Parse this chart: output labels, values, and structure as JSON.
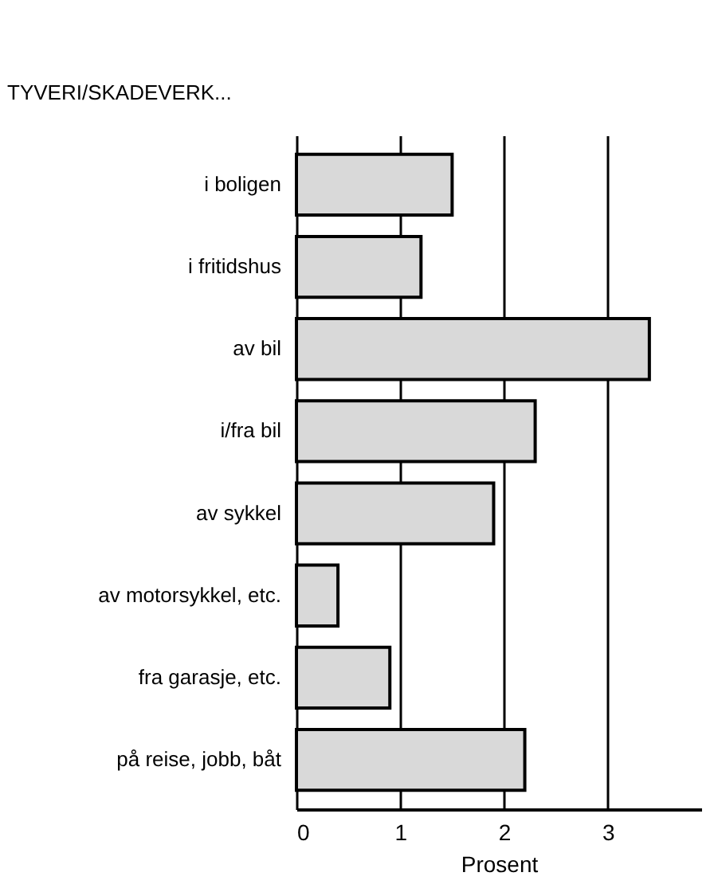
{
  "chart_data": {
    "type": "bar",
    "orientation": "horizontal",
    "ylabel": "TYVERI/SKADEVERK...",
    "xlabel": "Prosent",
    "categories": [
      "i boligen",
      "i fritidshus",
      "av bil",
      "i/fra bil",
      "av sykkel",
      "av motorsykkel, etc.",
      "fra garasje, etc.",
      "på reise, jobb, båt"
    ],
    "values": [
      1.5,
      1.2,
      3.4,
      2.3,
      1.9,
      0.4,
      0.9,
      2.2
    ],
    "color": "#d9d9d9",
    "xlim": [
      0,
      3.9
    ],
    "xticks": [
      0,
      1,
      2,
      3
    ],
    "grid": "x"
  }
}
